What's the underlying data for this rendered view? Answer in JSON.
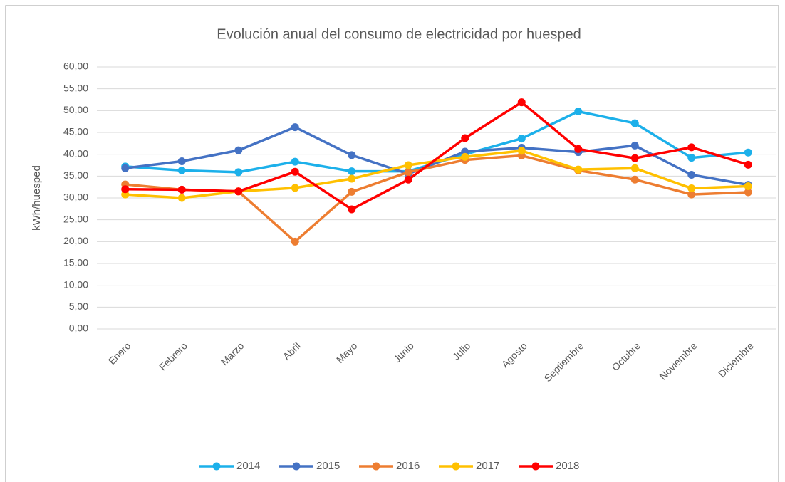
{
  "chart_data": {
    "type": "line",
    "title": "Evolución anual del consumo de electricidad por huesped",
    "y_label": "kWh/huesped",
    "categories": [
      "Enero",
      "Febrero",
      "Marzo",
      "Abril",
      "Mayo",
      "Junio",
      "Julio",
      "Agosto",
      "Septiembre",
      "Octubre",
      "Noviembre",
      "Diciembre"
    ],
    "series": [
      {
        "name": "2014",
        "color": "#1cb0ea",
        "values": [
          37.2,
          36.3,
          35.9,
          38.3,
          36.1,
          36.1,
          40.0,
          43.6,
          49.8,
          47.1,
          39.2,
          40.4
        ]
      },
      {
        "name": "2015",
        "color": "#4472c4",
        "values": [
          36.8,
          38.4,
          40.9,
          46.2,
          39.8,
          35.5,
          40.6,
          41.5,
          40.5,
          42.0,
          35.3,
          33.0
        ]
      },
      {
        "name": "2016",
        "color": "#ed7d31",
        "values": [
          33.1,
          31.9,
          31.5,
          20.0,
          31.4,
          35.9,
          38.7,
          39.7,
          36.3,
          34.2,
          30.8,
          31.3
        ]
      },
      {
        "name": "2017",
        "color": "#ffc000",
        "values": [
          30.8,
          30.0,
          31.5,
          32.3,
          34.4,
          37.5,
          39.4,
          40.8,
          36.5,
          36.8,
          32.2,
          32.7
        ]
      },
      {
        "name": "2018",
        "color": "#ff0000",
        "values": [
          32.0,
          31.9,
          31.5,
          36.0,
          27.4,
          34.2,
          43.7,
          51.9,
          41.2,
          39.1,
          41.6,
          37.6
        ]
      }
    ],
    "ylim": [
      0,
      60
    ],
    "yticks": [
      {
        "value": 0,
        "label": "0,00"
      },
      {
        "value": 5,
        "label": "5,00"
      },
      {
        "value": 10,
        "label": "10,00"
      },
      {
        "value": 15,
        "label": "15,00"
      },
      {
        "value": 20,
        "label": "20,00"
      },
      {
        "value": 25,
        "label": "25,00"
      },
      {
        "value": 30,
        "label": "30,00"
      },
      {
        "value": 35,
        "label": "35,00"
      },
      {
        "value": 40,
        "label": "40,00"
      },
      {
        "value": 45,
        "label": "45,00"
      },
      {
        "value": 50,
        "label": "50,00"
      },
      {
        "value": 55,
        "label": "55,00"
      },
      {
        "value": 60,
        "label": "60,00"
      }
    ],
    "grid": true,
    "legend": "bottom"
  }
}
